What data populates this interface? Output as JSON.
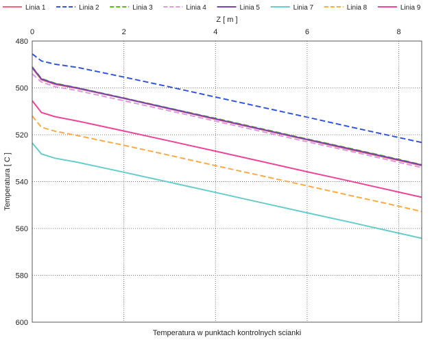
{
  "chart_data": {
    "type": "line",
    "title": "Temperatura w punktach kontrolnych scianki",
    "xlabel": "Z [ m ]",
    "ylabel": "Temperatura [ C ]",
    "x_ticks": [
      "0",
      "2",
      "4",
      "6",
      "8"
    ],
    "y_ticks": [
      "480",
      "500",
      "520",
      "540",
      "560",
      "580",
      "600"
    ],
    "xlim": [
      0,
      8.5
    ],
    "ylim": [
      480,
      600
    ],
    "y_axis_inverted": true,
    "grid": true,
    "legend_position": "top",
    "series": [
      {
        "name": "Linia 1",
        "color": "#ee6677",
        "dash": "solid",
        "x": [
          0,
          0.2,
          0.5,
          1,
          2,
          3,
          4,
          5,
          6,
          7,
          8,
          8.5
        ],
        "y": [
          491.5,
          496.5,
          498.5,
          500.3,
          504.5,
          509.0,
          513.4,
          517.8,
          522.2,
          526.6,
          531.0,
          533.2
        ]
      },
      {
        "name": "Linia 2",
        "color": "#3355dd",
        "dash": "dashed",
        "x": [
          0,
          0.2,
          0.5,
          1,
          2,
          3,
          4,
          5,
          6,
          7,
          8,
          8.5
        ],
        "y": [
          485.5,
          488.5,
          489.9,
          491.3,
          495.4,
          499.6,
          503.9,
          508.2,
          512.5,
          516.9,
          521.2,
          523.3
        ]
      },
      {
        "name": "Linia 3",
        "color": "#55bb22",
        "dash": "dashed",
        "x": [
          0,
          0.2,
          0.5,
          1,
          2,
          3,
          4,
          5,
          6,
          7,
          8,
          8.5
        ],
        "y": [
          491.0,
          496.0,
          498.0,
          500.0,
          504.3,
          508.7,
          513.0,
          517.4,
          521.8,
          526.1,
          530.5,
          532.8
        ]
      },
      {
        "name": "Linia 4",
        "color": "#dd99dd",
        "dash": "dashed",
        "x": [
          0,
          0.2,
          0.5,
          1,
          2,
          3,
          4,
          5,
          6,
          7,
          8,
          8.5
        ],
        "y": [
          494.0,
          497.5,
          499.5,
          501.2,
          505.5,
          509.8,
          514.2,
          518.6,
          523.0,
          527.3,
          531.8,
          534.0
        ]
      },
      {
        "name": "Linia 5",
        "color": "#7744aa",
        "dash": "solid",
        "x": [
          0,
          0.2,
          0.5,
          1,
          2,
          3,
          4,
          5,
          6,
          7,
          8,
          8.5
        ],
        "y": [
          491.2,
          496.2,
          498.2,
          500.1,
          504.4,
          508.8,
          513.2,
          517.6,
          522.0,
          526.3,
          530.7,
          532.9
        ]
      },
      {
        "name": "Linia 7",
        "color": "#66cccc",
        "dash": "solid",
        "x": [
          0,
          0.2,
          0.5,
          1,
          2,
          3,
          4,
          5,
          6,
          7,
          8,
          8.5
        ],
        "y": [
          523.5,
          528.2,
          530.0,
          531.8,
          536.0,
          540.3,
          544.6,
          549.0,
          553.3,
          557.6,
          562.0,
          564.2
        ]
      },
      {
        "name": "Linia 8",
        "color": "#ffaa44",
        "dash": "dashed",
        "x": [
          0,
          0.2,
          0.5,
          1,
          2,
          3,
          4,
          5,
          6,
          7,
          8,
          8.5
        ],
        "y": [
          512.0,
          516.8,
          518.5,
          520.4,
          524.5,
          528.8,
          533.2,
          537.5,
          541.8,
          546.2,
          550.5,
          552.8
        ]
      },
      {
        "name": "Linia 9",
        "color": "#ee4499",
        "dash": "solid",
        "x": [
          0,
          0.2,
          0.5,
          1,
          2,
          3,
          4,
          5,
          6,
          7,
          8,
          8.5
        ],
        "y": [
          505.5,
          510.5,
          512.3,
          514.2,
          518.4,
          522.7,
          527.0,
          531.4,
          535.8,
          540.1,
          544.5,
          546.7
        ]
      }
    ]
  }
}
